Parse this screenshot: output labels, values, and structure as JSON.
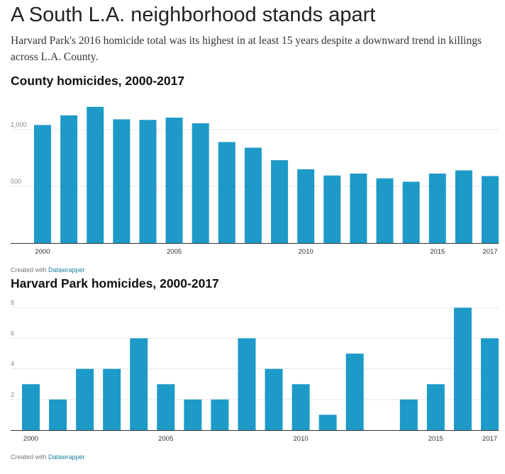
{
  "headline": "A South L.A. neighborhood stands apart",
  "dek": "Harvard Park's 2016 homicide total was its highest in at least 15 years despite a downward trend in killings across L.A. County.",
  "credit": {
    "prefix": "Created with ",
    "link": "Datawrapper"
  },
  "colors": {
    "bar": "#1d9ac7",
    "grid": "#e6e6e6",
    "axis": "#333333",
    "tick_text": "#888888",
    "xtick_text": "#333333"
  },
  "chart_data": [
    {
      "type": "bar",
      "title": "County homicides, 2000-2017",
      "categories": [
        "2000",
        "2001",
        "2002",
        "2003",
        "2004",
        "2005",
        "2006",
        "2007",
        "2008",
        "2009",
        "2010",
        "2011",
        "2012",
        "2013",
        "2014",
        "2015",
        "2016",
        "2017"
      ],
      "values": [
        1040,
        1125,
        1200,
        1090,
        1085,
        1105,
        1055,
        890,
        840,
        730,
        650,
        595,
        612,
        570,
        540,
        612,
        640,
        590
      ],
      "xtick_labels": [
        "2000",
        "2005",
        "2010",
        "2015",
        "2017"
      ],
      "yticks": [
        500,
        1000
      ],
      "ytick_labels": [
        "500",
        "1,000"
      ],
      "ylim": [
        0,
        1230
      ],
      "xlabel": "",
      "ylabel": "",
      "grid": true
    },
    {
      "type": "bar",
      "title": "Harvard Park homicides, 2000-2017",
      "categories": [
        "2000",
        "2001",
        "2002",
        "2003",
        "2004",
        "2005",
        "2006",
        "2007",
        "2008",
        "2009",
        "2010",
        "2011",
        "2012",
        "2013",
        "2014",
        "2015",
        "2016",
        "2017"
      ],
      "values": [
        3,
        2,
        4,
        4,
        6,
        3,
        2,
        2,
        6,
        4,
        3,
        1,
        5,
        0,
        2,
        3,
        8,
        6
      ],
      "xtick_labels": [
        "2000",
        "2005",
        "2010",
        "2015",
        "2017"
      ],
      "yticks": [
        2,
        4,
        6,
        8
      ],
      "ytick_labels": [
        "2",
        "4",
        "6",
        "8"
      ],
      "ylim": [
        0,
        8.2
      ],
      "xlabel": "",
      "ylabel": "",
      "grid": true
    }
  ]
}
